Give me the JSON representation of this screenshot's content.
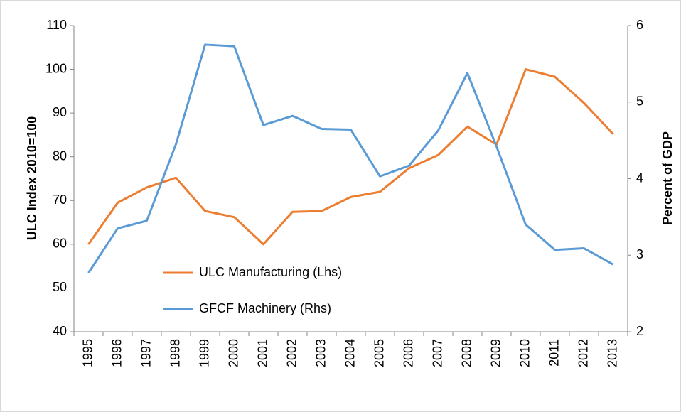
{
  "chart_data": {
    "type": "line",
    "y_label": "ULC Index 2010=100",
    "y2_label": "Percent of GDP",
    "categories": [
      "1995",
      "1996",
      "1997",
      "1998",
      "1999",
      "2000",
      "2001",
      "2002",
      "2003",
      "2004",
      "2005",
      "2006",
      "2007",
      "2008",
      "2009",
      "2010",
      "2011",
      "2012",
      "2013"
    ],
    "series": [
      {
        "name": "ULC  Manufacturing (Lhs)",
        "color": "#ed7d31",
        "axis": "y",
        "values": [
          60,
          69.5,
          73,
          75.2,
          67.6,
          66.2,
          60,
          67.4,
          67.6,
          70.8,
          72,
          77.4,
          80.4,
          86.9,
          82.8,
          100,
          98.3,
          92.3,
          85.2
        ]
      },
      {
        "name": "GFCF Machinery (Rhs)",
        "color": "#5b9bd5",
        "axis": "y2",
        "values": [
          2.77,
          3.35,
          3.45,
          4.45,
          5.75,
          5.73,
          4.7,
          4.82,
          4.65,
          4.64,
          4.03,
          4.17,
          4.63,
          5.38,
          4.42,
          3.4,
          3.07,
          3.09,
          2.88
        ]
      }
    ],
    "ylim": [
      40,
      110
    ],
    "yticks": [
      40,
      50,
      60,
      70,
      80,
      90,
      100,
      110
    ],
    "y2lim": [
      2,
      6
    ],
    "y2ticks": [
      2,
      3,
      4,
      5,
      6
    ],
    "grid": false
  }
}
